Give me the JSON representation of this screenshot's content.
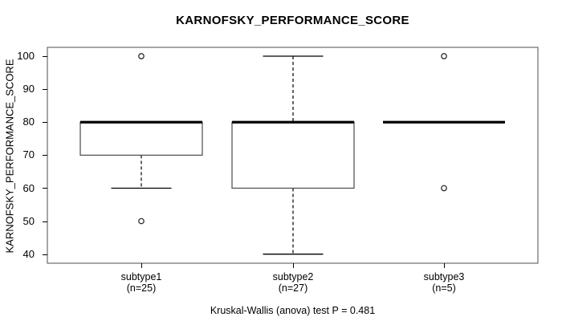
{
  "chart_data": {
    "type": "boxplot",
    "title": "KARNOFSKY_PERFORMANCE_SCORE",
    "ylabel": "KARNOFSKY_PERFORMANCE_SCORE",
    "xlabel": "",
    "yticks": [
      40,
      50,
      60,
      70,
      80,
      90,
      100
    ],
    "ylim": [
      40,
      100
    ],
    "grid": "off",
    "legend": "none",
    "groups": [
      {
        "label": "subtype1",
        "sublabel": "(n=25)",
        "n": 25,
        "q1": 70,
        "median": 80,
        "q3": 80,
        "whisker_low": 60,
        "whisker_high": 80,
        "outliers": [
          100,
          50
        ]
      },
      {
        "label": "subtype2",
        "sublabel": "(n=27)",
        "n": 27,
        "q1": 60,
        "median": 80,
        "q3": 80,
        "whisker_low": 40,
        "whisker_high": 100,
        "outliers": []
      },
      {
        "label": "subtype3",
        "sublabel": "(n=5)",
        "n": 5,
        "q1": 80,
        "median": 80,
        "q3": 80,
        "whisker_low": 80,
        "whisker_high": 80,
        "outliers": [
          100,
          60
        ]
      }
    ],
    "footnote": "Kruskal-Wallis (anova) test P = 0.481",
    "colors": {
      "line": "#000000",
      "box_stroke": "#4a4a4a",
      "frame_stroke": "#4d4d4d",
      "background": "#ffffff"
    }
  }
}
